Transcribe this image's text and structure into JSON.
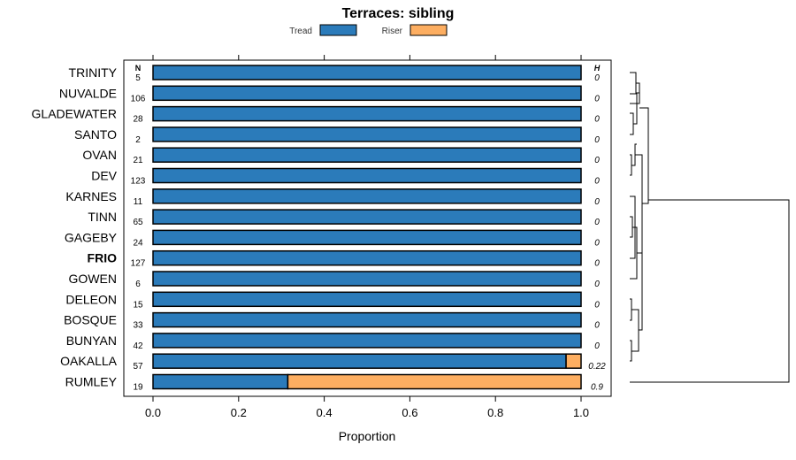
{
  "chart_data": {
    "type": "bar",
    "orientation": "horizontal",
    "stacked": true,
    "title": "Terraces: sibling",
    "xlabel": "Proportion",
    "xlim": [
      0,
      1
    ],
    "x_ticks": [
      "0.0",
      "0.2",
      "0.4",
      "0.6",
      "0.8",
      "1.0"
    ],
    "x_tick_values": [
      0,
      0.2,
      0.4,
      0.6,
      0.8,
      1.0
    ],
    "n_header": "N",
    "h_header": "H",
    "legend": [
      {
        "name": "Tread",
        "color": "#2b7bba"
      },
      {
        "name": "Riser",
        "color": "#fdae61"
      }
    ],
    "categories": [
      "TRINITY",
      "NUVALDE",
      "GLADEWATER",
      "SANTO",
      "OVAN",
      "DEV",
      "KARNES",
      "TINN",
      "GAGEBY",
      "FRIO",
      "GOWEN",
      "DELEON",
      "BOSQUE",
      "BUNYAN",
      "OAKALLA",
      "RUMLEY"
    ],
    "highlight": "FRIO",
    "n_values": [
      "5",
      "106",
      "28",
      "2",
      "21",
      "123",
      "11",
      "65",
      "24",
      "127",
      "6",
      "15",
      "33",
      "42",
      "57",
      "19"
    ],
    "h_values": [
      "0",
      "0",
      "0",
      "0",
      "0",
      "0",
      "0",
      "0",
      "0",
      "0",
      "0",
      "0",
      "0",
      "0",
      "0.22",
      "0.9"
    ],
    "series": [
      {
        "name": "Tread",
        "values": [
          1,
          1,
          1,
          1,
          1,
          1,
          1,
          1,
          1,
          1,
          1,
          1,
          1,
          1,
          0.965,
          0.315
        ]
      },
      {
        "name": "Riser",
        "values": [
          0,
          0,
          0,
          0,
          0,
          0,
          0,
          0,
          0,
          0,
          0,
          0,
          0,
          0,
          0.035,
          0.685
        ]
      }
    ]
  }
}
